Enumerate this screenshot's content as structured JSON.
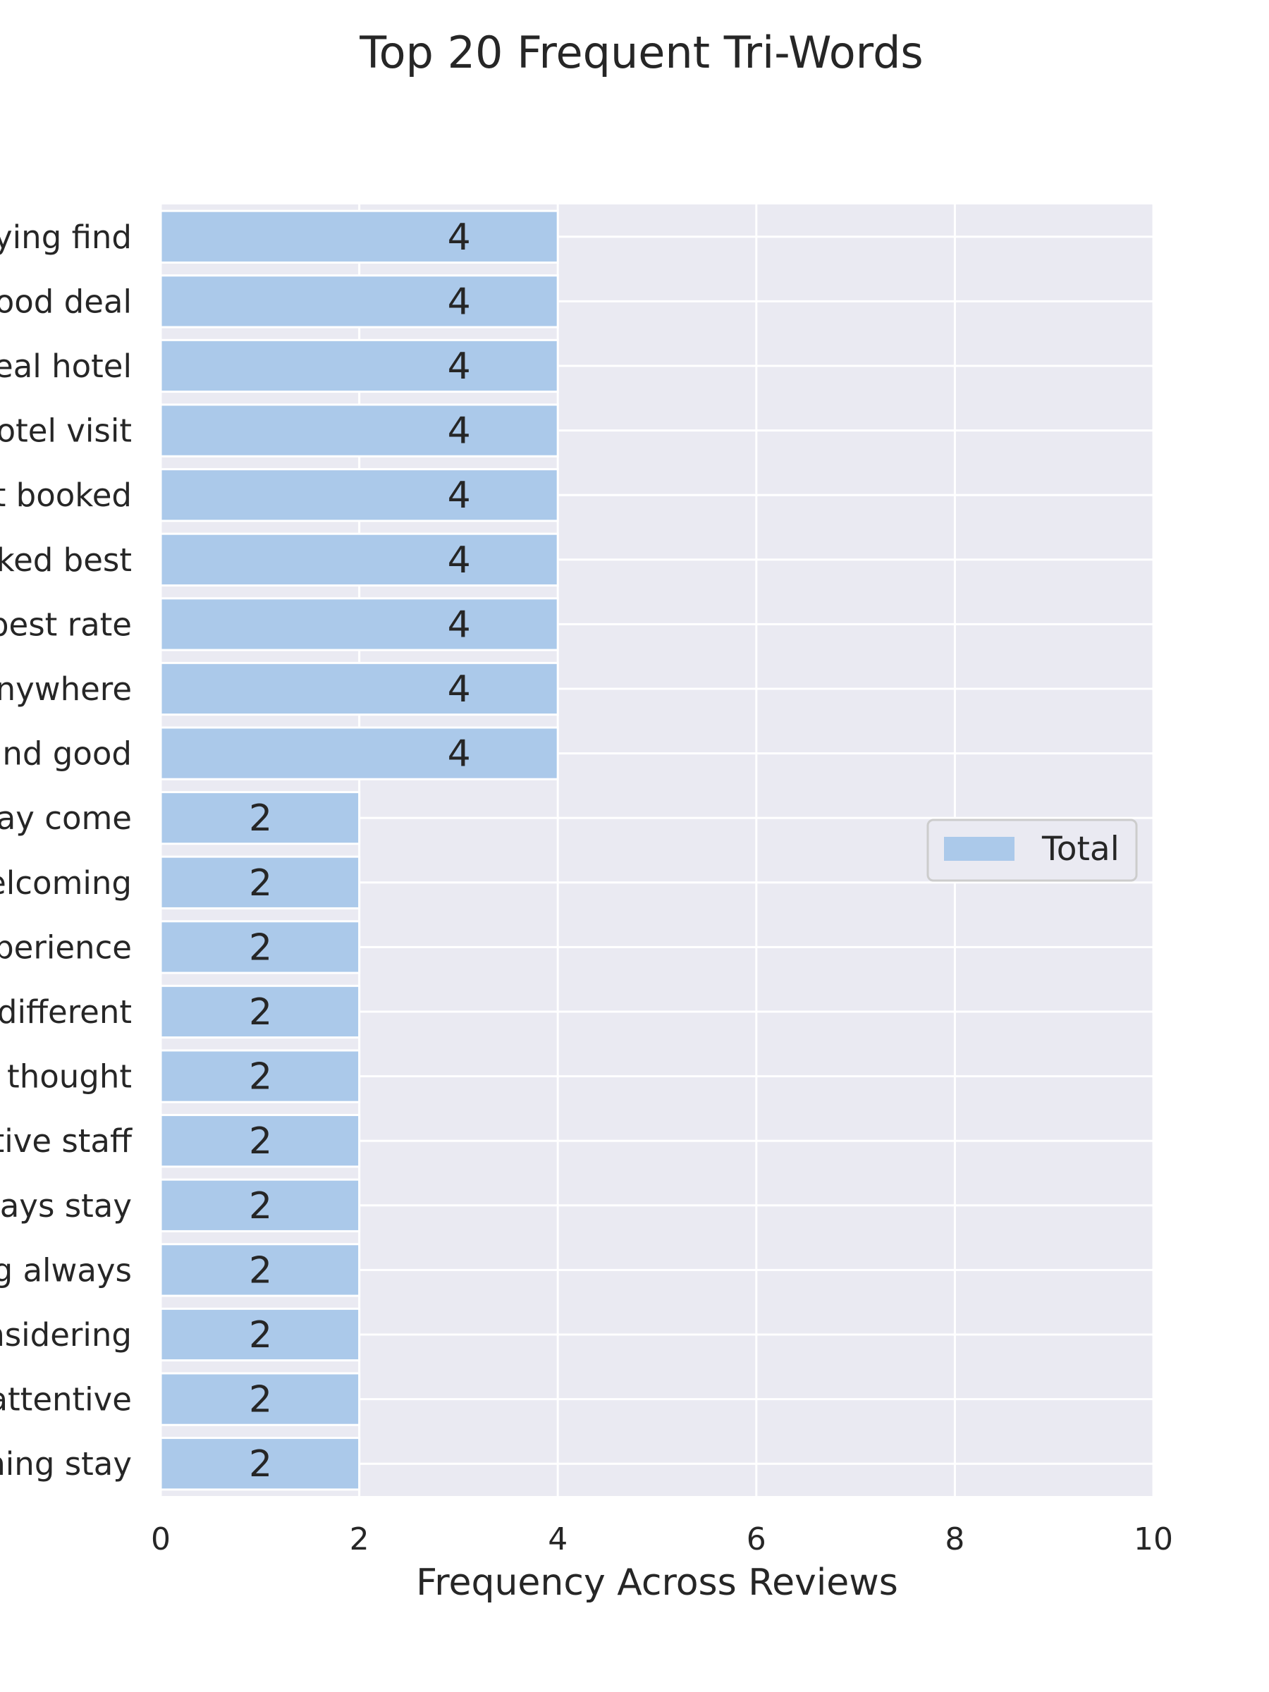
{
  "chart_data": {
    "type": "bar",
    "orientation": "horizontal",
    "title": "Top 20 Frequent Tri-Words",
    "xlabel": "Frequency Across Reviews",
    "ylabel": "",
    "xlim": [
      0,
      10
    ],
    "xticks": [
      "0",
      "2",
      "4",
      "6",
      "8",
      "10"
    ],
    "grid": true,
    "legend_position": "center-right",
    "categories": [
      "ying find",
      "ood deal",
      "eal hotel",
      "otel visit",
      "t booked",
      "ked best",
      "best rate",
      "nywhere",
      "nd good",
      "ay come",
      "elcoming",
      "perience",
      "different",
      "thought",
      "tive staff",
      "ays stay",
      "g always",
      "nsidering",
      "attentive",
      "ning stay"
    ],
    "series": [
      {
        "name": "Total",
        "values": [
          4,
          4,
          4,
          4,
          4,
          4,
          4,
          4,
          4,
          2,
          2,
          2,
          2,
          2,
          2,
          2,
          2,
          2,
          2,
          2
        ],
        "color": "#abc9ea"
      }
    ],
    "colors": {
      "background": "#eaeaf2",
      "grid": "#ffffff",
      "text": "#262626"
    }
  }
}
